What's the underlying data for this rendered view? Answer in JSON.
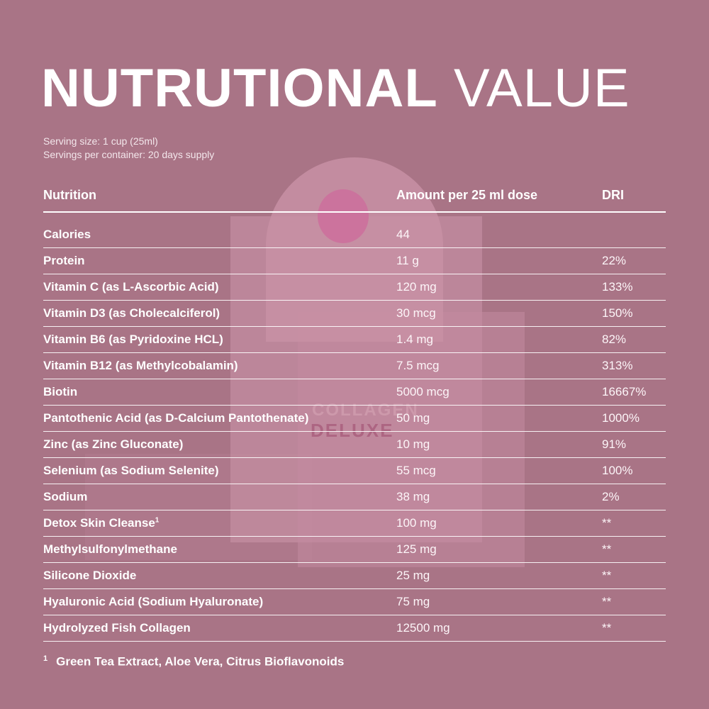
{
  "title": {
    "bold_part": "NUTRUTIONAL",
    "light_part": "VALUE"
  },
  "serving": {
    "size": "Serving size: 1 cup (25ml)",
    "per_container": "Servings per container: 20 days supply"
  },
  "background": {
    "color": "#a97486",
    "product_text": {
      "collagen": "COLLAGEN",
      "deluxe": "DELUXE"
    }
  },
  "table": {
    "headers": {
      "nutrition": "Nutrition",
      "amount": "Amount per 25 ml dose",
      "dri": "DRI"
    },
    "rows": [
      {
        "name": "Calories",
        "amount": "44",
        "dri": ""
      },
      {
        "name": "Protein",
        "amount": "11 g",
        "dri": "22%"
      },
      {
        "name": "Vitamin C (as L-Ascorbic Acid)",
        "amount": "120 mg",
        "dri": "133%"
      },
      {
        "name": "Vitamin D3 (as Cholecalciferol)",
        "amount": "30 mcg",
        "dri": "150%"
      },
      {
        "name": "Vitamin B6 (as Pyridoxine HCL)",
        "amount": "1.4 mg",
        "dri": "82%"
      },
      {
        "name": "Vitamin B12 (as Methylcobalamin)",
        "amount": "7.5 mcg",
        "dri": "313%"
      },
      {
        "name": "Biotin",
        "amount": "5000 mcg",
        "dri": "16667%"
      },
      {
        "name": "Pantothenic Acid (as D-Calcium Pantothenate)",
        "amount": "50 mg",
        "dri": "1000%"
      },
      {
        "name": "Zinc (as Zinc Gluconate)",
        "amount": "10 mg",
        "dri": "91%"
      },
      {
        "name": "Selenium (as Sodium Selenite)",
        "amount": "55 mcg",
        "dri": "100%"
      },
      {
        "name": "Sodium",
        "amount": "38 mg",
        "dri": "2%"
      },
      {
        "name": "Detox Skin Cleanse",
        "sup": "1",
        "amount": "100 mg",
        "dri": "**"
      },
      {
        "name": "Methylsulfonylmethane",
        "amount": "125 mg",
        "dri": "**"
      },
      {
        "name": "Silicone Dioxide",
        "amount": "25 mg",
        "dri": "**"
      },
      {
        "name": "Hyaluronic Acid (Sodium Hyaluronate)",
        "amount": "75 mg",
        "dri": "**"
      },
      {
        "name": "Hydrolyzed Fish Collagen",
        "amount": "12500 mg",
        "dri": "**"
      }
    ]
  },
  "footnote": {
    "mark": "1",
    "text": "Green Tea Extract, Aloe Vera, Citrus Bioflavonoids"
  }
}
